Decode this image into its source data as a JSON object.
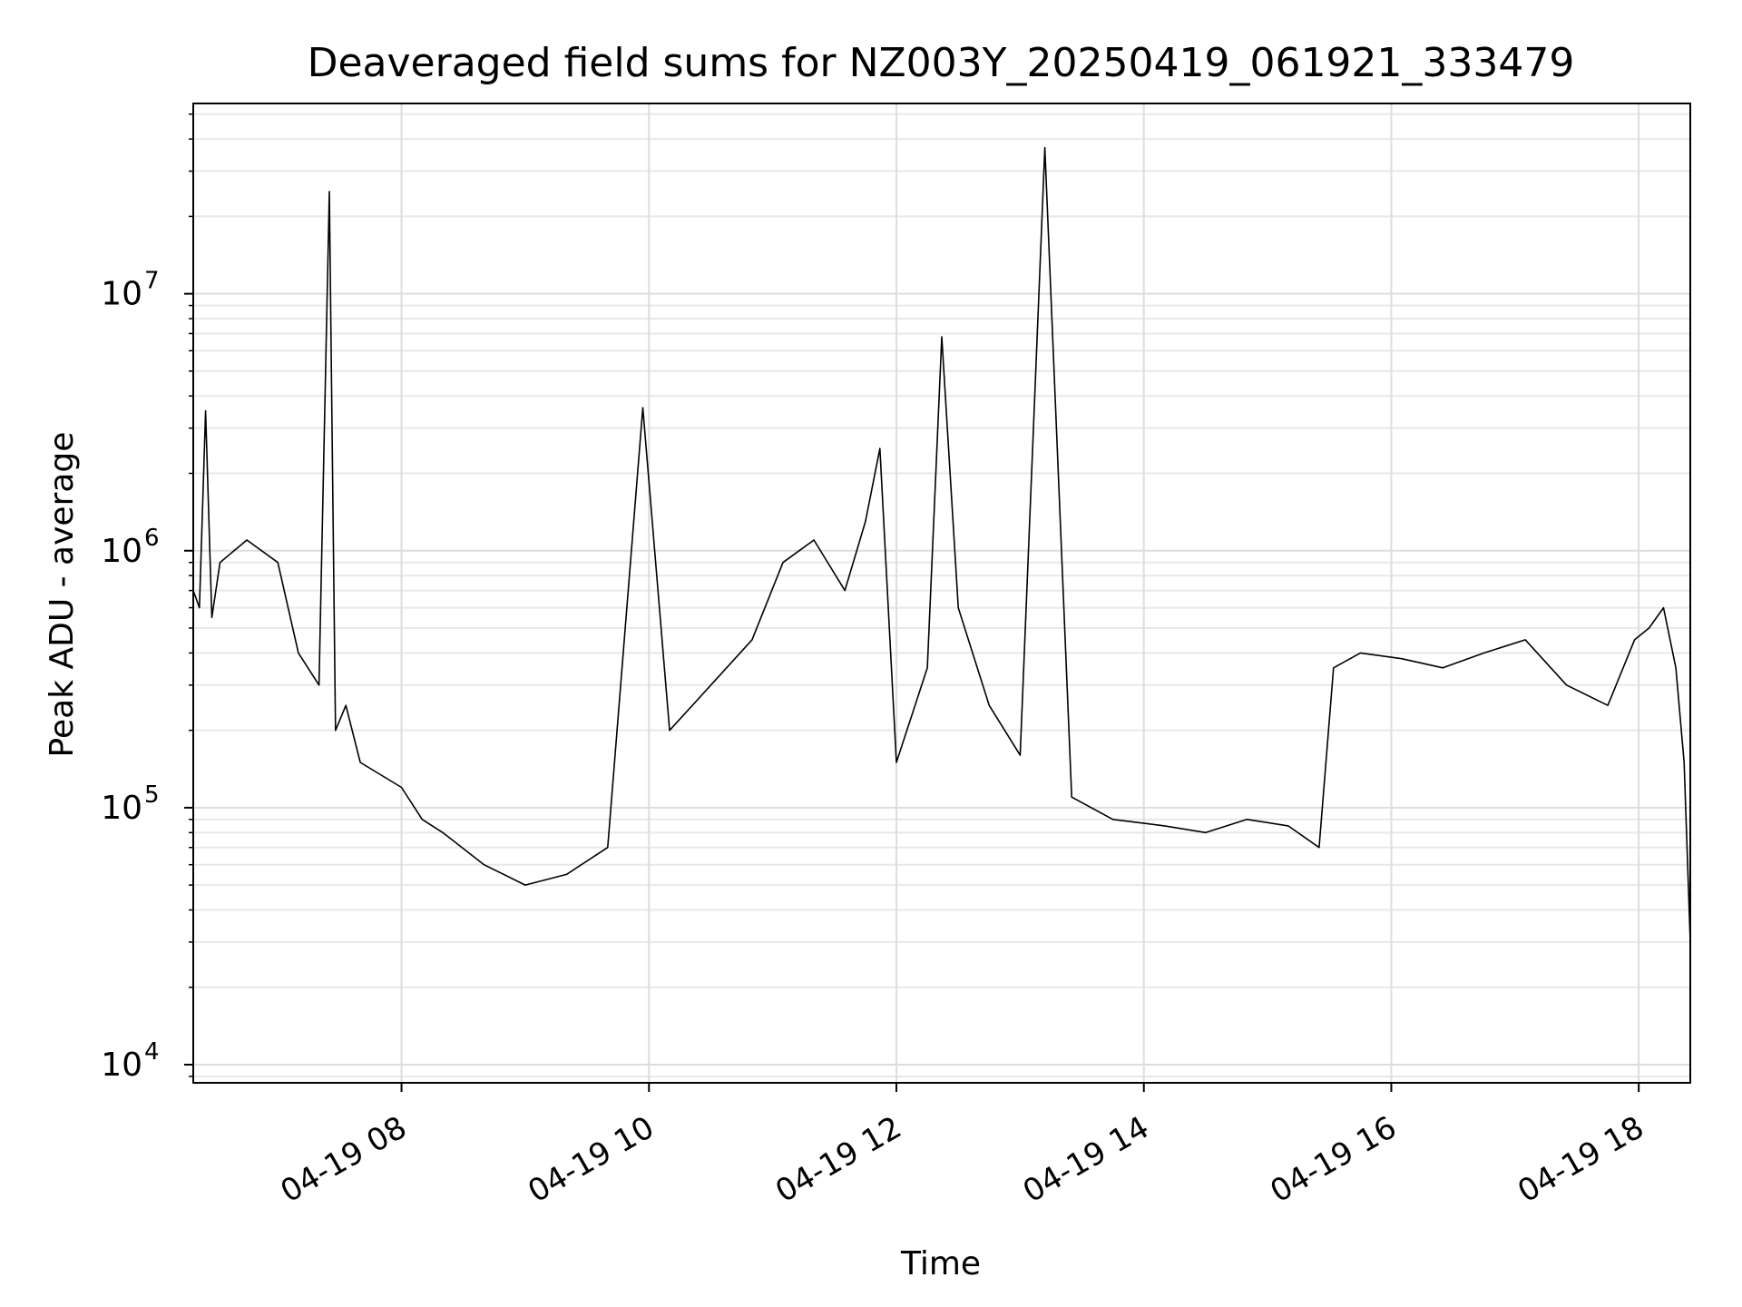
{
  "colors": {
    "background": "#ffffff",
    "line": "#000000",
    "grid_major": "#dddddd",
    "grid_minor": "#e8e8e8",
    "axes": "#000000"
  },
  "chart_data": {
    "type": "line",
    "title": "Deaveraged field sums for NZ003Y_20250419_061921_333479",
    "xlabel": "Time",
    "ylabel": "Peak ADU - average",
    "yscale": "log",
    "xlim": [
      "2025-04-19 06:19",
      "2025-04-19 18:25"
    ],
    "ylim": [
      8500,
      55000000
    ],
    "x_ticks": [
      "2025-04-19 08:00",
      "2025-04-19 10:00",
      "2025-04-19 12:00",
      "2025-04-19 14:00",
      "2025-04-19 16:00",
      "2025-04-19 18:00"
    ],
    "x_tick_labels": [
      "04-19 08",
      "04-19 10",
      "04-19 12",
      "04-19 14",
      "04-19 16",
      "04-19 18"
    ],
    "y_ticks": [
      10000,
      100000,
      1000000,
      10000000
    ],
    "y_tick_base": "10",
    "y_tick_exponents": [
      "4",
      "5",
      "6",
      "7"
    ],
    "grid": true,
    "grid_minor": true,
    "legend": "none",
    "series": [
      {
        "values_note": "",
        "x": [
          "2025-04-19 06:19",
          "2025-04-19 06:22",
          "2025-04-19 06:25",
          "2025-04-19 06:28",
          "2025-04-19 06:32",
          "2025-04-19 06:45",
          "2025-04-19 07:00",
          "2025-04-19 07:10",
          "2025-04-19 07:20",
          "2025-04-19 07:25",
          "2025-04-19 07:28",
          "2025-04-19 07:33",
          "2025-04-19 07:40",
          "2025-04-19 08:00",
          "2025-04-19 08:10",
          "2025-04-19 08:20",
          "2025-04-19 08:40",
          "2025-04-19 09:00",
          "2025-04-19 09:20",
          "2025-04-19 09:40",
          "2025-04-19 09:57",
          "2025-04-19 10:10",
          "2025-04-19 10:30",
          "2025-04-19 10:50",
          "2025-04-19 11:05",
          "2025-04-19 11:20",
          "2025-04-19 11:35",
          "2025-04-19 11:45",
          "2025-04-19 11:52",
          "2025-04-19 12:00",
          "2025-04-19 12:15",
          "2025-04-19 12:22",
          "2025-04-19 12:30",
          "2025-04-19 12:45",
          "2025-04-19 13:00",
          "2025-04-19 13:12",
          "2025-04-19 13:25",
          "2025-04-19 13:45",
          "2025-04-19 14:10",
          "2025-04-19 14:30",
          "2025-04-19 14:50",
          "2025-04-19 15:10",
          "2025-04-19 15:25",
          "2025-04-19 15:32",
          "2025-04-19 15:45",
          "2025-04-19 16:05",
          "2025-04-19 16:25",
          "2025-04-19 16:45",
          "2025-04-19 17:05",
          "2025-04-19 17:25",
          "2025-04-19 17:45",
          "2025-04-19 17:58",
          "2025-04-19 18:05",
          "2025-04-19 18:12",
          "2025-04-19 18:18",
          "2025-04-19 18:22",
          "2025-04-19 18:25"
        ],
        "y": [
          700000,
          600000,
          3500000,
          550000,
          900000,
          1100000,
          900000,
          400000,
          300000,
          25000000,
          200000,
          250000,
          150000,
          120000,
          90000,
          80000,
          60000,
          50000,
          55000,
          70000,
          3600000,
          200000,
          300000,
          450000,
          900000,
          1100000,
          700000,
          1300000,
          2500000,
          150000,
          350000,
          6800000,
          600000,
          250000,
          160000,
          37000000,
          110000,
          90000,
          85000,
          80000,
          90000,
          85000,
          70000,
          350000,
          400000,
          380000,
          350000,
          400000,
          450000,
          300000,
          250000,
          450000,
          500000,
          600000,
          350000,
          150000,
          30000
        ]
      }
    ]
  }
}
